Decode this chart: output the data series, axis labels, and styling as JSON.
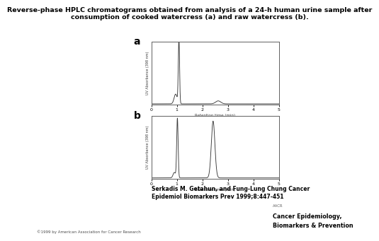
{
  "title": "Reverse-phase HPLC chromatograms obtained from analysis of a 24-h human urine sample after\nconsumption of cooked watercress (a) and raw watercress (b).",
  "xlabel": "Retention time (min)",
  "ylabel": "UV Absorbance (398 nm)",
  "xmin": 0,
  "xmax": 5,
  "xticks": [
    0,
    1,
    2,
    3,
    4,
    5
  ],
  "panel_a_label": "a",
  "panel_b_label": "b",
  "citation_line1": "Serkadis M. Getahun, and Fung-Lung Chung Cancer",
  "citation_line2": "Epidemiol Biomarkers Prev 1999;8:447-451",
  "copyright": "©1999 by American Association for Cancer Research",
  "journal_line1": "Cancer Epidemiology,",
  "journal_line2": "Biomarkers & Prevention",
  "aacr_text": "AACR",
  "bg_color": "#ffffff",
  "line_color": "#3a3a3a",
  "box_color": "#606060",
  "text_color": "#000000"
}
